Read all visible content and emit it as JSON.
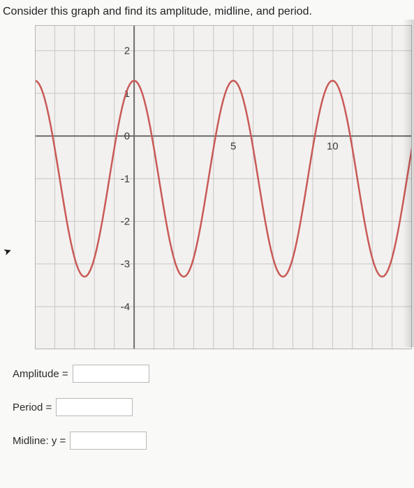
{
  "prompt": "Consider this graph and find its amplitude, midline, and period.",
  "chart": {
    "type": "line",
    "background_color": "#f2f1f0",
    "grid_color": "#c8c6c4",
    "grid_minor_color": "#e5e3e1",
    "axis_color": "#6d6c6a",
    "curve_color": "#c95a56",
    "curve_width": 2.5,
    "xlim": [
      -5,
      14
    ],
    "ylim": [
      -5,
      2.6
    ],
    "xtick_step": 1,
    "ytick_step": 1,
    "xlabels": [
      {
        "x": 5,
        "text": "5"
      },
      {
        "x": 10,
        "text": "10"
      }
    ],
    "ylabels": [
      {
        "y": 2,
        "text": "2"
      },
      {
        "y": 1,
        "text": "1"
      },
      {
        "y": 0,
        "text": "0"
      },
      {
        "y": -1,
        "text": "-1"
      },
      {
        "y": -2,
        "text": "-2"
      },
      {
        "y": -3,
        "text": "-3"
      },
      {
        "y": -4,
        "text": "-4"
      }
    ],
    "label_fontsize": 15,
    "label_color": "#3b3b3b",
    "function": {
      "type": "sinusoid",
      "midline": -1,
      "amplitude": 2.3,
      "period": 5,
      "phase_x_at_minimum": -2.5
    },
    "x_sample_start": -5,
    "x_sample_end": 14,
    "x_sample_step": 0.1
  },
  "answers": {
    "amplitude_label": "Amplitude =",
    "period_label": "Period =",
    "midline_label": "Midline: y =",
    "amplitude_value": "",
    "period_value": "",
    "midline_value": ""
  }
}
